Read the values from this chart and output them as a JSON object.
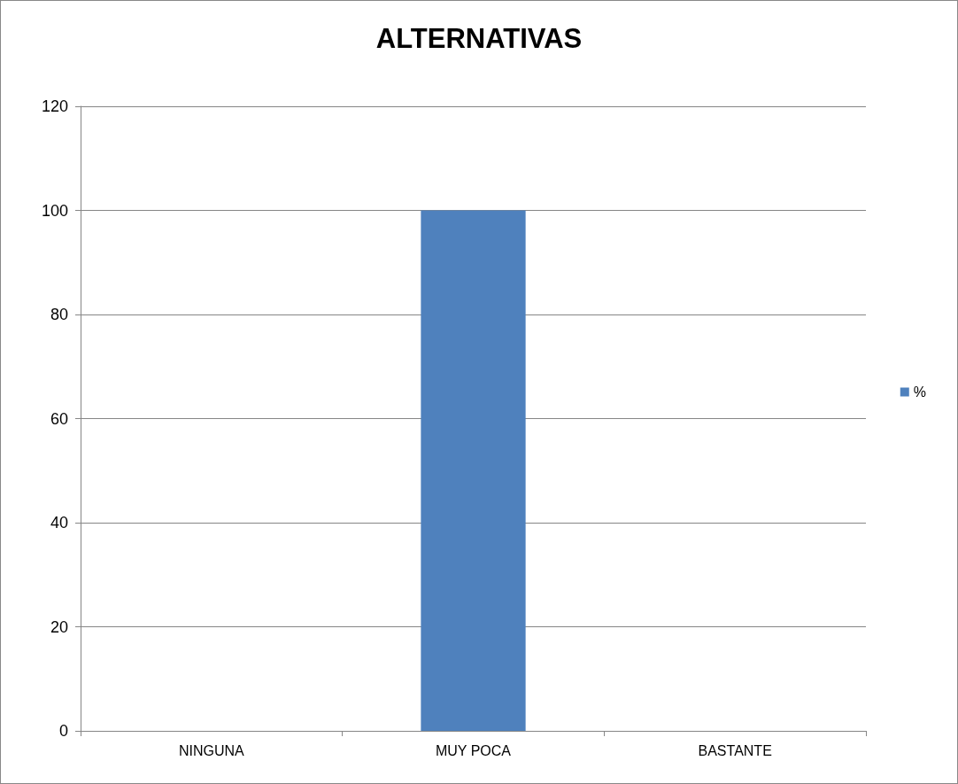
{
  "chart_data": {
    "type": "bar",
    "title": "ALTERNATIVAS",
    "categories": [
      "NINGUNA",
      "MUY POCA",
      "BASTANTE"
    ],
    "series": [
      {
        "name": "%",
        "color": "#4f81bd",
        "values": [
          0,
          100,
          0
        ]
      }
    ],
    "ylim": [
      0,
      120
    ],
    "yticks": [
      0,
      20,
      40,
      60,
      80,
      100,
      120
    ],
    "grid": "y",
    "legend": "right"
  }
}
